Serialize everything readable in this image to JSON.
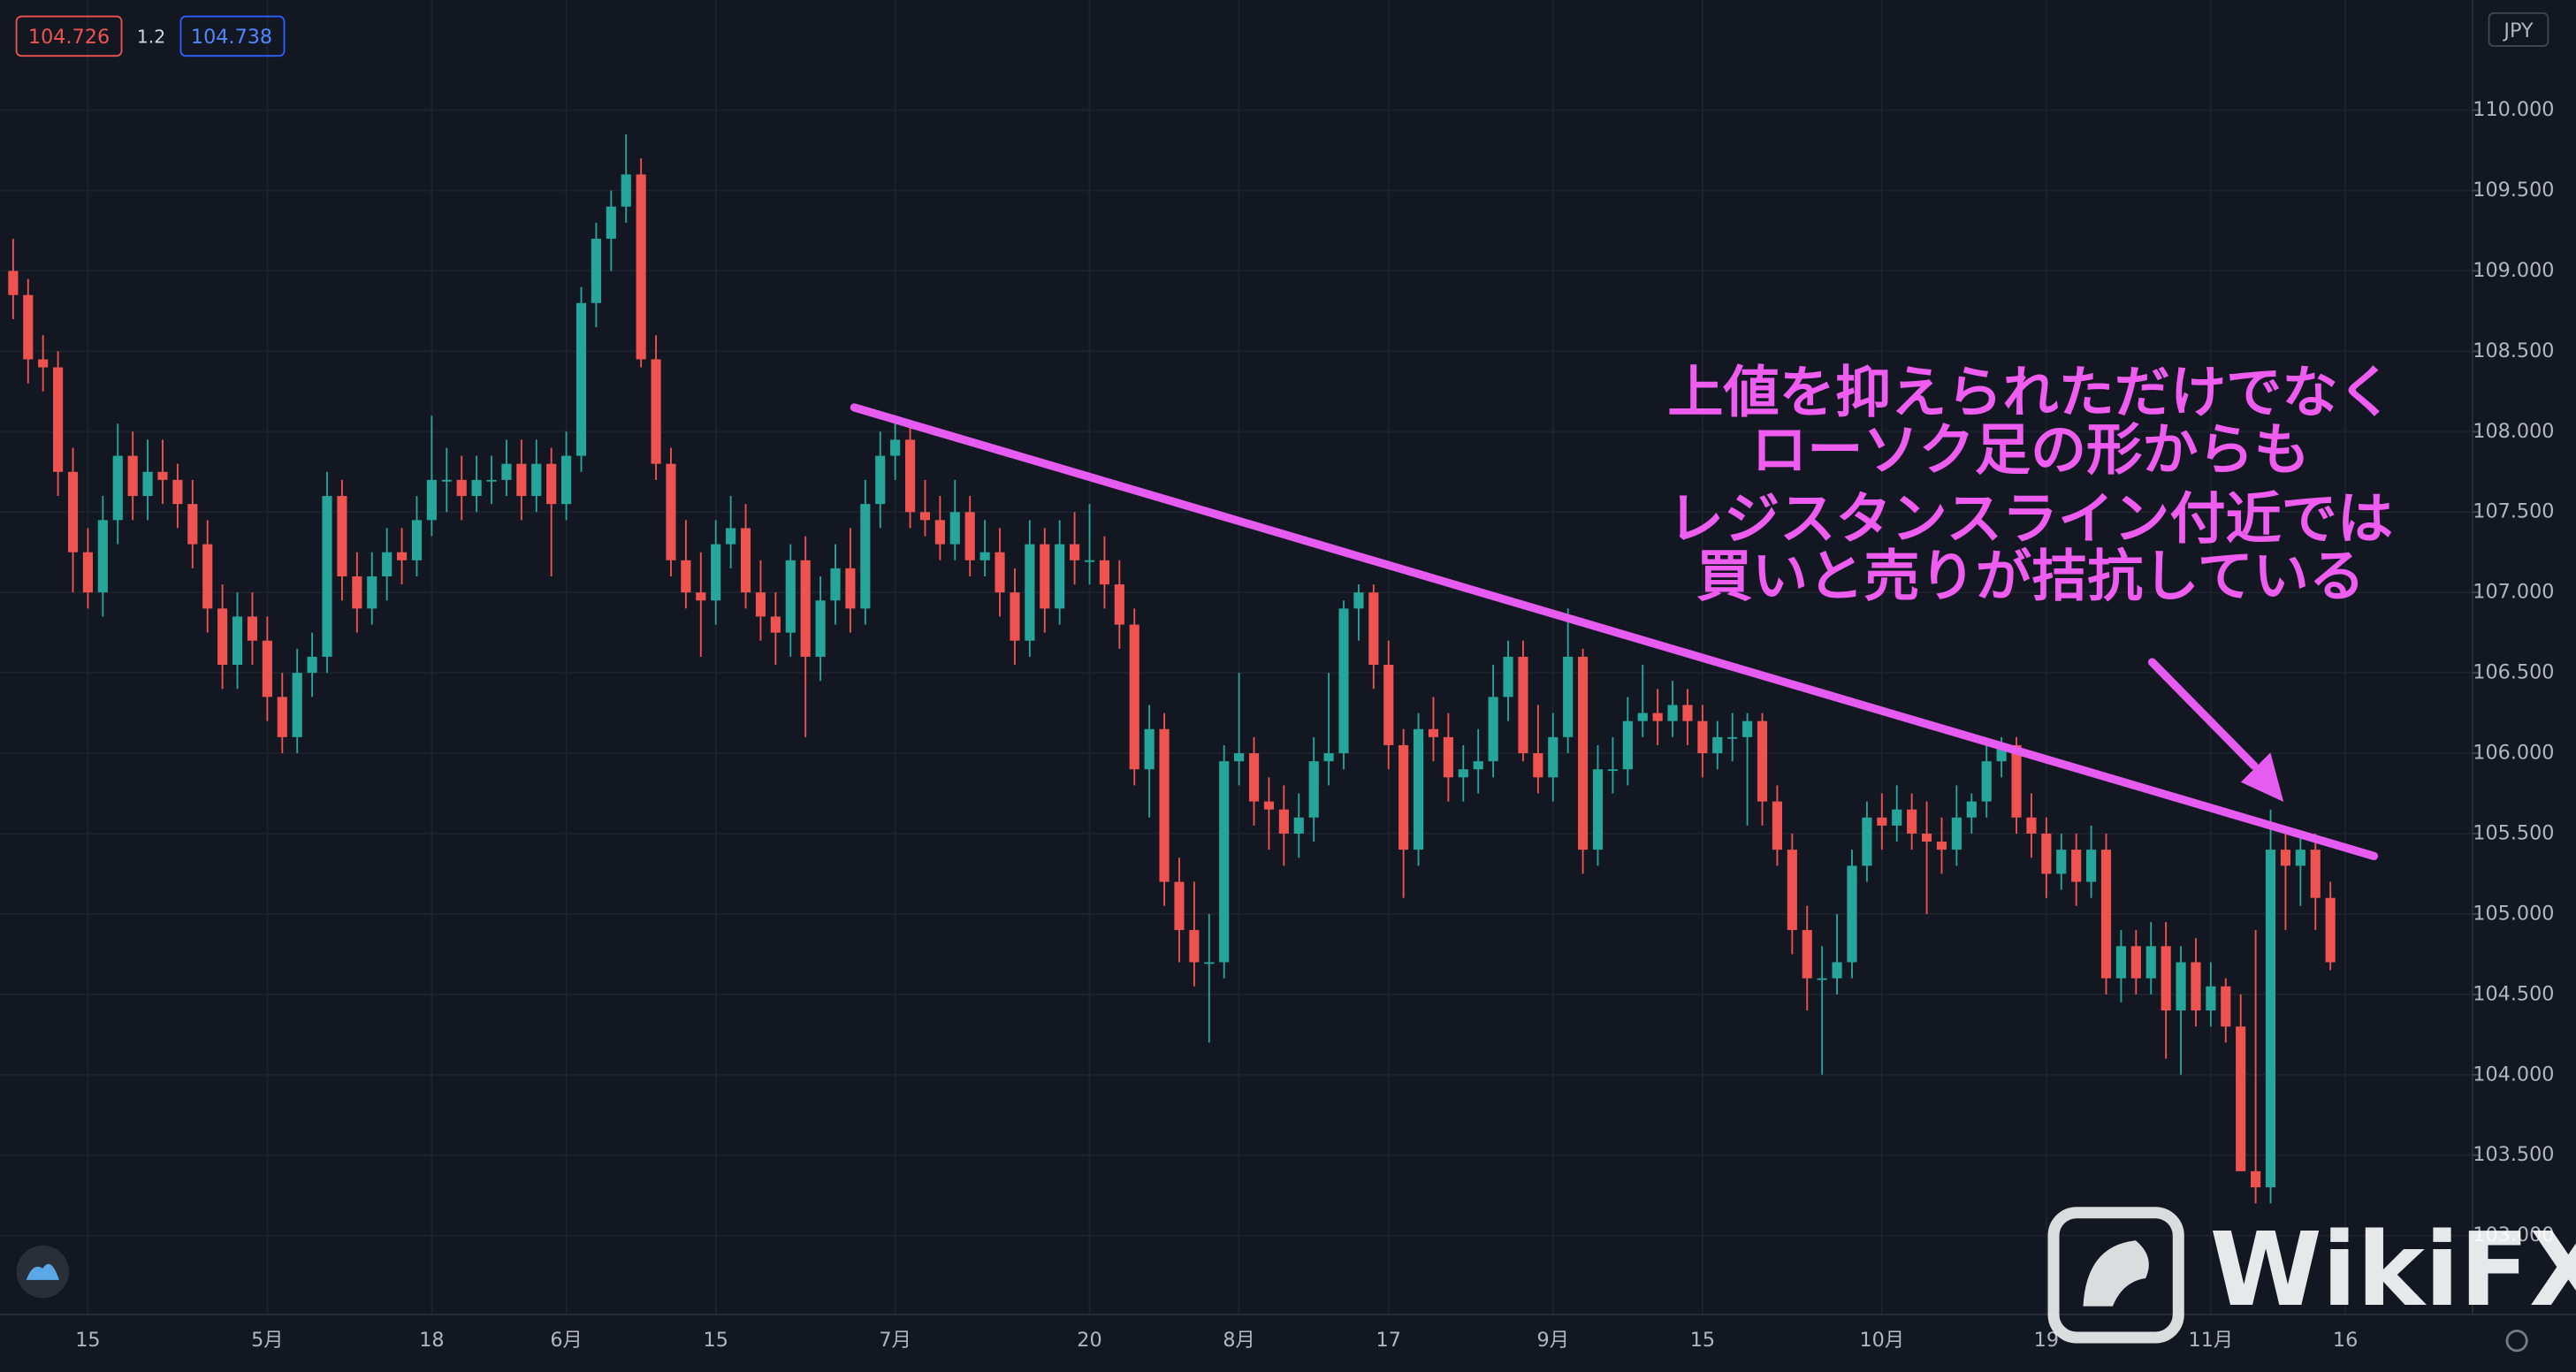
{
  "chart_data": {
    "type": "candlestick",
    "price_labels": [
      "104.726",
      "1.2",
      "104.738"
    ],
    "currency": "JPY",
    "annotation": [
      "上値を抑えられただけでなく",
      "ローソク足の形からも",
      "レジスタンスライン付近では",
      "買いと売りが拮抗している"
    ],
    "watermark": "WikiFX",
    "up_color": "#26a69a",
    "down_color": "#ef5350",
    "grid": true,
    "ylim": [
      102.56,
      110.685
    ],
    "yticks": [
      {
        "value": 103,
        "label": "103.000"
      },
      {
        "value": 103.5,
        "label": "103.500"
      },
      {
        "value": 104,
        "label": "104.000"
      },
      {
        "value": 104.5,
        "label": "104.500"
      },
      {
        "value": 105,
        "label": "105.000"
      },
      {
        "value": 105.5,
        "label": "105.500"
      },
      {
        "value": 106,
        "label": "106.000"
      },
      {
        "value": 106.5,
        "label": "106.500"
      },
      {
        "value": 107,
        "label": "107.000"
      },
      {
        "value": 107.5,
        "label": "107.500"
      },
      {
        "value": 108,
        "label": "108.000"
      },
      {
        "value": 108.5,
        "label": "108.500"
      },
      {
        "value": 109,
        "label": "109.000"
      },
      {
        "value": 109.5,
        "label": "109.500"
      },
      {
        "value": 110,
        "label": "110.000"
      }
    ],
    "categories": [
      null,
      null,
      null,
      null,
      null,
      "15",
      null,
      null,
      null,
      null,
      null,
      null,
      null,
      null,
      null,
      null,
      null,
      "5月",
      null,
      null,
      null,
      null,
      null,
      null,
      null,
      null,
      null,
      null,
      "18",
      null,
      null,
      null,
      null,
      null,
      null,
      null,
      null,
      "6月",
      null,
      null,
      null,
      null,
      null,
      null,
      null,
      null,
      null,
      "15",
      null,
      null,
      null,
      null,
      null,
      null,
      null,
      null,
      null,
      null,
      null,
      "7月",
      null,
      null,
      null,
      null,
      null,
      null,
      null,
      null,
      null,
      null,
      null,
      null,
      "20",
      null,
      null,
      null,
      null,
      null,
      null,
      null,
      null,
      null,
      "8月",
      null,
      null,
      null,
      null,
      null,
      null,
      null,
      null,
      null,
      "17",
      null,
      null,
      null,
      null,
      null,
      null,
      null,
      null,
      null,
      null,
      "9月",
      null,
      null,
      null,
      null,
      null,
      null,
      null,
      null,
      null,
      "15",
      null,
      null,
      null,
      null,
      null,
      null,
      null,
      null,
      null,
      null,
      null,
      "10月",
      null,
      null,
      null,
      null,
      null,
      null,
      null,
      null,
      null,
      null,
      "19",
      null,
      null,
      null,
      null,
      null,
      null,
      null,
      null,
      null,
      null,
      "11月",
      null,
      null,
      null,
      null,
      null,
      null,
      null,
      null,
      "16"
    ],
    "values": [
      [
        109.0,
        109.2,
        108.7,
        108.85
      ],
      [
        108.85,
        108.95,
        108.3,
        108.45
      ],
      [
        108.45,
        108.6,
        108.25,
        108.4
      ],
      [
        108.4,
        108.5,
        107.6,
        107.75
      ],
      [
        107.75,
        107.9,
        107.0,
        107.25
      ],
      [
        107.25,
        107.4,
        106.9,
        107.0
      ],
      [
        107.0,
        107.6,
        106.85,
        107.45
      ],
      [
        107.45,
        108.05,
        107.3,
        107.85
      ],
      [
        107.85,
        108.0,
        107.45,
        107.6
      ],
      [
        107.6,
        107.95,
        107.45,
        107.75
      ],
      [
        107.75,
        107.95,
        107.55,
        107.7
      ],
      [
        107.7,
        107.8,
        107.4,
        107.55
      ],
      [
        107.55,
        107.7,
        107.15,
        107.3
      ],
      [
        107.3,
        107.45,
        106.75,
        106.9
      ],
      [
        106.9,
        107.05,
        106.4,
        106.55
      ],
      [
        106.55,
        107.0,
        106.4,
        106.85
      ],
      [
        106.85,
        107.0,
        106.55,
        106.7
      ],
      [
        106.7,
        106.85,
        106.2,
        106.35
      ],
      [
        106.35,
        106.5,
        106.0,
        106.1
      ],
      [
        106.1,
        106.65,
        106.0,
        106.5
      ],
      [
        106.5,
        106.75,
        106.35,
        106.6
      ],
      [
        106.6,
        107.75,
        106.5,
        107.6
      ],
      [
        107.6,
        107.7,
        106.95,
        107.1
      ],
      [
        107.1,
        107.25,
        106.75,
        106.9
      ],
      [
        106.9,
        107.25,
        106.8,
        107.1
      ],
      [
        107.1,
        107.4,
        106.95,
        107.25
      ],
      [
        107.25,
        107.4,
        107.05,
        107.2
      ],
      [
        107.2,
        107.6,
        107.1,
        107.45
      ],
      [
        107.45,
        108.1,
        107.35,
        107.7
      ],
      [
        107.7,
        107.9,
        107.5,
        107.7
      ],
      [
        107.7,
        107.85,
        107.45,
        107.6
      ],
      [
        107.6,
        107.85,
        107.5,
        107.7
      ],
      [
        107.7,
        107.85,
        107.55,
        107.7
      ],
      [
        107.7,
        107.95,
        107.6,
        107.8
      ],
      [
        107.8,
        107.95,
        107.45,
        107.6
      ],
      [
        107.6,
        107.95,
        107.5,
        107.8
      ],
      [
        107.8,
        107.9,
        107.1,
        107.55
      ],
      [
        107.55,
        108.0,
        107.45,
        107.85
      ],
      [
        107.85,
        108.9,
        107.75,
        108.8
      ],
      [
        108.8,
        109.3,
        108.65,
        109.2
      ],
      [
        109.2,
        109.5,
        109.0,
        109.4
      ],
      [
        109.4,
        109.85,
        109.3,
        109.6
      ],
      [
        109.6,
        109.7,
        108.4,
        108.45
      ],
      [
        108.45,
        108.6,
        107.7,
        107.8
      ],
      [
        107.8,
        107.9,
        107.1,
        107.2
      ],
      [
        107.2,
        107.45,
        106.9,
        107.0
      ],
      [
        107.0,
        107.25,
        106.6,
        106.95
      ],
      [
        106.95,
        107.45,
        106.8,
        107.3
      ],
      [
        107.3,
        107.6,
        107.15,
        107.4
      ],
      [
        107.4,
        107.55,
        106.9,
        107.0
      ],
      [
        107.0,
        107.2,
        106.7,
        106.85
      ],
      [
        106.85,
        107.0,
        106.55,
        106.75
      ],
      [
        106.75,
        107.3,
        106.6,
        107.2
      ],
      [
        107.2,
        107.35,
        106.1,
        106.6
      ],
      [
        106.6,
        107.1,
        106.45,
        106.95
      ],
      [
        106.95,
        107.3,
        106.8,
        107.15
      ],
      [
        107.15,
        107.4,
        106.75,
        106.9
      ],
      [
        106.9,
        107.7,
        106.8,
        107.55
      ],
      [
        107.55,
        108.0,
        107.4,
        107.85
      ],
      [
        107.85,
        108.1,
        107.7,
        107.95
      ],
      [
        107.95,
        108.05,
        107.4,
        107.5
      ],
      [
        107.5,
        107.7,
        107.35,
        107.45
      ],
      [
        107.45,
        107.6,
        107.2,
        107.3
      ],
      [
        107.3,
        107.7,
        107.2,
        107.5
      ],
      [
        107.5,
        107.6,
        107.1,
        107.2
      ],
      [
        107.2,
        107.45,
        107.1,
        107.25
      ],
      [
        107.25,
        107.4,
        106.85,
        107.0
      ],
      [
        107.0,
        107.15,
        106.55,
        106.7
      ],
      [
        106.7,
        107.45,
        106.6,
        107.3
      ],
      [
        107.3,
        107.4,
        106.75,
        106.9
      ],
      [
        106.9,
        107.45,
        106.8,
        107.3
      ],
      [
        107.3,
        107.5,
        107.05,
        107.2
      ],
      [
        107.2,
        107.55,
        107.05,
        107.2
      ],
      [
        107.2,
        107.35,
        106.9,
        107.05
      ],
      [
        107.05,
        107.2,
        106.65,
        106.8
      ],
      [
        106.8,
        106.9,
        105.8,
        105.9
      ],
      [
        105.9,
        106.3,
        105.6,
        106.15
      ],
      [
        106.15,
        106.25,
        105.05,
        105.2
      ],
      [
        105.2,
        105.35,
        104.7,
        104.9
      ],
      [
        104.9,
        105.2,
        104.55,
        104.7
      ],
      [
        104.7,
        105.0,
        104.2,
        104.7
      ],
      [
        104.7,
        106.05,
        104.6,
        105.95
      ],
      [
        105.95,
        106.5,
        105.8,
        106.0
      ],
      [
        106.0,
        106.1,
        105.55,
        105.7
      ],
      [
        105.7,
        105.85,
        105.4,
        105.65
      ],
      [
        105.65,
        105.8,
        105.3,
        105.5
      ],
      [
        105.5,
        105.75,
        105.35,
        105.6
      ],
      [
        105.6,
        106.1,
        105.45,
        105.95
      ],
      [
        105.95,
        106.5,
        105.8,
        106.0
      ],
      [
        106.0,
        106.95,
        105.9,
        106.9
      ],
      [
        106.9,
        107.05,
        106.7,
        107.0
      ],
      [
        107.0,
        107.05,
        106.4,
        106.55
      ],
      [
        106.55,
        106.7,
        105.9,
        106.05
      ],
      [
        106.05,
        106.15,
        105.1,
        105.4
      ],
      [
        105.4,
        106.25,
        105.3,
        106.15
      ],
      [
        106.15,
        106.35,
        105.95,
        106.1
      ],
      [
        106.1,
        106.25,
        105.7,
        105.85
      ],
      [
        105.85,
        106.05,
        105.7,
        105.9
      ],
      [
        105.9,
        106.15,
        105.75,
        105.95
      ],
      [
        105.95,
        106.55,
        105.85,
        106.35
      ],
      [
        106.35,
        106.7,
        106.2,
        106.6
      ],
      [
        106.6,
        106.7,
        105.95,
        106.0
      ],
      [
        106.0,
        106.3,
        105.75,
        105.85
      ],
      [
        105.85,
        106.25,
        105.7,
        106.1
      ],
      [
        106.1,
        106.9,
        106.0,
        106.6
      ],
      [
        106.6,
        106.65,
        105.25,
        105.4
      ],
      [
        105.4,
        106.05,
        105.3,
        105.9
      ],
      [
        105.9,
        106.1,
        105.75,
        105.9
      ],
      [
        105.9,
        106.35,
        105.8,
        106.2
      ],
      [
        106.2,
        106.55,
        106.1,
        106.25
      ],
      [
        106.25,
        106.4,
        106.05,
        106.2
      ],
      [
        106.2,
        106.45,
        106.1,
        106.3
      ],
      [
        106.3,
        106.4,
        106.05,
        106.2
      ],
      [
        106.2,
        106.3,
        105.85,
        106.0
      ],
      [
        106.0,
        106.2,
        105.9,
        106.1
      ],
      [
        106.1,
        106.25,
        105.95,
        106.1
      ],
      [
        106.1,
        106.25,
        105.55,
        106.2
      ],
      [
        106.2,
        106.25,
        105.55,
        105.7
      ],
      [
        105.7,
        105.8,
        105.3,
        105.4
      ],
      [
        105.4,
        105.5,
        104.75,
        104.9
      ],
      [
        104.9,
        105.05,
        104.4,
        104.6
      ],
      [
        104.6,
        104.8,
        104.0,
        104.6
      ],
      [
        104.6,
        105.0,
        104.5,
        104.7
      ],
      [
        104.7,
        105.4,
        104.6,
        105.3
      ],
      [
        105.3,
        105.7,
        105.2,
        105.6
      ],
      [
        105.6,
        105.75,
        105.4,
        105.55
      ],
      [
        105.55,
        105.8,
        105.45,
        105.65
      ],
      [
        105.65,
        105.75,
        105.4,
        105.5
      ],
      [
        105.5,
        105.7,
        105.0,
        105.45
      ],
      [
        105.45,
        105.6,
        105.25,
        105.4
      ],
      [
        105.4,
        105.8,
        105.3,
        105.6
      ],
      [
        105.6,
        105.75,
        105.5,
        105.7
      ],
      [
        105.7,
        106.05,
        105.6,
        105.95
      ],
      [
        105.95,
        106.1,
        105.85,
        106.05
      ],
      [
        106.05,
        106.1,
        105.5,
        105.6
      ],
      [
        105.6,
        105.75,
        105.35,
        105.5
      ],
      [
        105.5,
        105.6,
        105.1,
        105.25
      ],
      [
        105.25,
        105.5,
        105.15,
        105.4
      ],
      [
        105.4,
        105.5,
        105.05,
        105.2
      ],
      [
        105.2,
        105.55,
        105.1,
        105.4
      ],
      [
        105.4,
        105.5,
        104.5,
        104.6
      ],
      [
        104.6,
        104.9,
        104.45,
        104.8
      ],
      [
        104.8,
        104.9,
        104.5,
        104.6
      ],
      [
        104.6,
        104.95,
        104.5,
        104.8
      ],
      [
        104.8,
        104.95,
        104.1,
        104.4
      ],
      [
        104.4,
        104.8,
        104.0,
        104.7
      ],
      [
        104.7,
        104.85,
        104.3,
        104.4
      ],
      [
        104.4,
        104.7,
        104.3,
        104.55
      ],
      [
        104.55,
        104.6,
        104.2,
        104.3
      ],
      [
        104.3,
        104.5,
        103.4,
        103.4
      ],
      [
        103.4,
        104.9,
        103.2,
        103.3
      ],
      [
        103.3,
        105.65,
        103.2,
        105.4
      ],
      [
        105.4,
        105.5,
        104.9,
        105.3
      ],
      [
        105.3,
        105.5,
        105.05,
        105.4
      ],
      [
        105.4,
        105.5,
        104.9,
        105.1
      ],
      [
        105.1,
        105.2,
        104.65,
        104.7
      ],
      null
    ]
  }
}
